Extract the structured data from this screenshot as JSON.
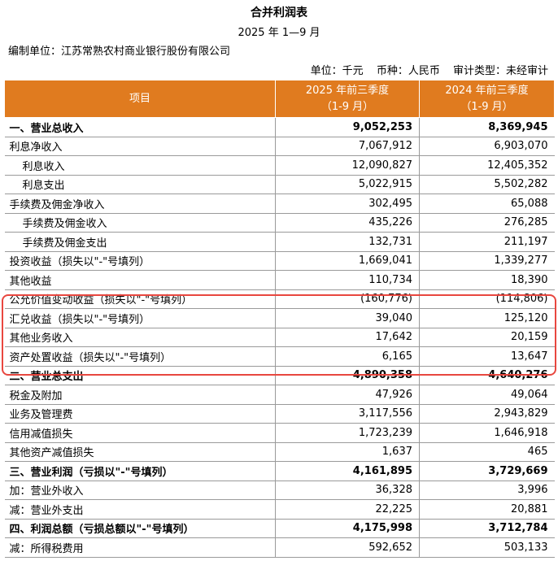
{
  "header": {
    "title": "合并利润表",
    "period": "2025 年 1—9 月",
    "entity": "编制单位：江苏常熟农村商业银行股份有限公司",
    "unit": "单位：千元",
    "currency": "币种：人民币",
    "audit": "审计类型：未经审计"
  },
  "table": {
    "columns": {
      "item": "项目",
      "y2025": "2025 年前三季度",
      "y2025_sub": "（1-9 月）",
      "y2024": "2024 年前三季度",
      "y2024_sub": "（1-9 月）"
    },
    "rows": [
      {
        "label": "一、营业总收入",
        "v2025": "9,052,253",
        "v2024": "8,369,945"
      },
      {
        "label": "利息净收入",
        "v2025": "7,067,912",
        "v2024": "6,903,070"
      },
      {
        "label": "利息收入",
        "v2025": "12,090,827",
        "v2024": "12,405,352"
      },
      {
        "label": "利息支出",
        "v2025": "5,022,915",
        "v2024": "5,502,282"
      },
      {
        "label": "手续费及佣金净收入",
        "v2025": "302,495",
        "v2024": "65,088"
      },
      {
        "label": "手续费及佣金收入",
        "v2025": "435,226",
        "v2024": "276,285"
      },
      {
        "label": "手续费及佣金支出",
        "v2025": "132,731",
        "v2024": "211,197"
      },
      {
        "label": "投资收益（损失以\"-\"号填列）",
        "v2025": "1,669,041",
        "v2024": "1,339,277"
      },
      {
        "label": "其他收益",
        "v2025": "110,734",
        "v2024": "18,390"
      },
      {
        "label": "公允价值变动收益（损失以\"-\"号填列）",
        "v2025": "(160,776)",
        "v2024": "(114,806)"
      },
      {
        "label": "汇兑收益（损失以\"-\"号填列）",
        "v2025": "39,040",
        "v2024": "125,120"
      },
      {
        "label": "其他业务收入",
        "v2025": "17,642",
        "v2024": "20,159"
      },
      {
        "label": "资产处置收益（损失以\"-\"号填列）",
        "v2025": "6,165",
        "v2024": "13,647"
      },
      {
        "label": "二、营业总支出",
        "v2025": "4,890,358",
        "v2024": "4,640,276"
      },
      {
        "label": "税金及附加",
        "v2025": "47,926",
        "v2024": "49,064"
      },
      {
        "label": "业务及管理费",
        "v2025": "3,117,556",
        "v2024": "2,943,829"
      },
      {
        "label": "信用减值损失",
        "v2025": "1,723,239",
        "v2024": "1,646,918"
      },
      {
        "label": "其他资产减值损失",
        "v2025": "1,637",
        "v2024": "465"
      },
      {
        "label": "三、营业利润（亏损以\"-\"号填列）",
        "v2025": "4,161,895",
        "v2024": "3,729,669"
      },
      {
        "label": "加：营业外收入",
        "v2025": "36,328",
        "v2024": "3,996"
      },
      {
        "label": "减：营业外支出",
        "v2025": "22,225",
        "v2024": "20,881"
      },
      {
        "label": "四、利润总额（亏损总额以\"-\"号填列）",
        "v2025": "4,175,998",
        "v2024": "3,712,784"
      },
      {
        "label": "减：所得税费用",
        "v2025": "592,652",
        "v2024": "503,133"
      }
    ]
  },
  "colors": {
    "header_bg": "#e07b1f",
    "highlight_border": "#e8473f"
  }
}
